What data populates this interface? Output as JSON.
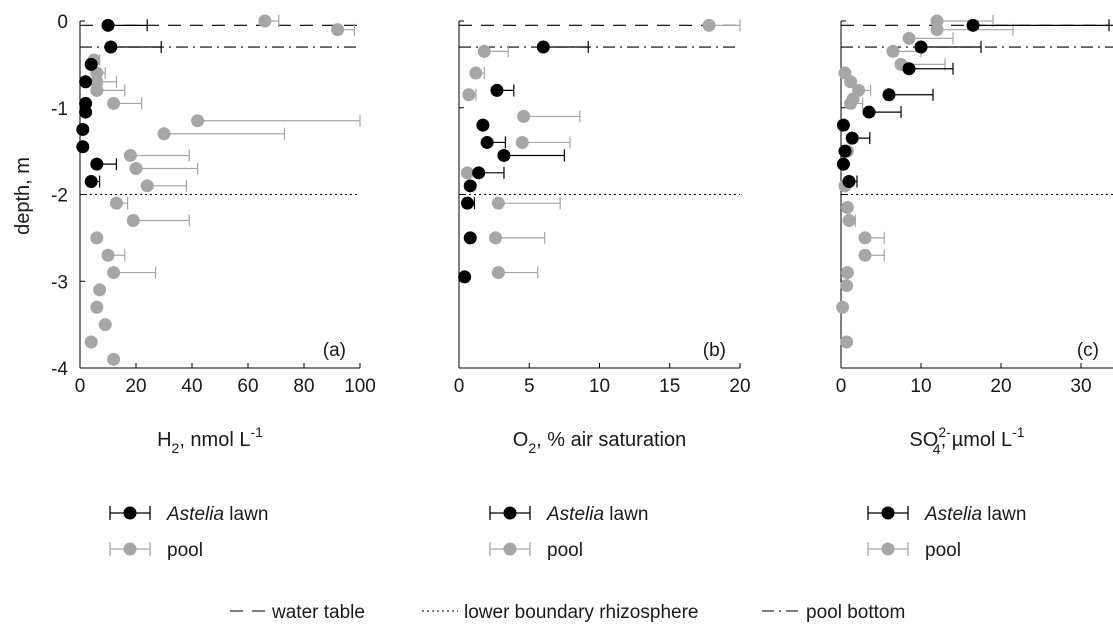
{
  "figure": {
    "shared_ylabel": "depth, m",
    "reference_lines": [
      {
        "key": "water_table",
        "label": "water table",
        "style": "dashed"
      },
      {
        "key": "rhizosphere",
        "label": "lower boundary rhizosphere",
        "style": "dotted"
      },
      {
        "key": "pool_bottom",
        "label": "pool bottom",
        "style": "dashdot"
      }
    ],
    "series_colors": {
      "Astelia lawn": "#000000",
      "pool": "#a6a6a6"
    }
  },
  "chart_data": [
    {
      "type": "scatter",
      "panel_label": "(a)",
      "xlabel_main": "H",
      "xlabel_sub": "2",
      "xlabel_sup": "",
      "xlabel_rest": ", nmol L",
      "xlabel_rest_sup": "-1",
      "xlim": [
        0,
        100
      ],
      "ylim": [
        -4,
        0
      ],
      "xticks": [
        0,
        20,
        40,
        60,
        80,
        100
      ],
      "yticks": [
        0,
        -1,
        -2,
        -3,
        -4
      ],
      "ylabel": "depth, m",
      "reference_depths": {
        "water_table": -0.05,
        "pool_bottom": -0.3,
        "rhizosphere": -2.0
      },
      "legend": [
        {
          "name": "Astelia lawn",
          "italic_part": "Astelia",
          "rest": " lawn"
        },
        {
          "name": "pool",
          "italic_part": "",
          "rest": "pool"
        }
      ],
      "series": [
        {
          "name": "Astelia lawn",
          "points": [
            {
              "x": 10,
              "y": -0.05,
              "err": 14
            },
            {
              "x": 11,
              "y": -0.3,
              "err": 18
            },
            {
              "x": 4,
              "y": -0.5,
              "err": 0
            },
            {
              "x": 2,
              "y": -0.7,
              "err": 0
            },
            {
              "x": 2,
              "y": -0.95,
              "err": 0
            },
            {
              "x": 2,
              "y": -1.05,
              "err": 0
            },
            {
              "x": 1,
              "y": -1.25,
              "err": 0
            },
            {
              "x": 1,
              "y": -1.45,
              "err": 0
            },
            {
              "x": 6,
              "y": -1.65,
              "err": 7
            },
            {
              "x": 4,
              "y": -1.85,
              "err": 3
            }
          ]
        },
        {
          "name": "pool",
          "points": [
            {
              "x": 66,
              "y": 0.0,
              "err": 5
            },
            {
              "x": 92,
              "y": -0.1,
              "err": 6
            },
            {
              "x": 5,
              "y": -0.45,
              "err": 2
            },
            {
              "x": 6,
              "y": -0.6,
              "err": 3
            },
            {
              "x": 6,
              "y": -0.7,
              "err": 7
            },
            {
              "x": 6,
              "y": -0.8,
              "err": 10
            },
            {
              "x": 12,
              "y": -0.95,
              "err": 10
            },
            {
              "x": 42,
              "y": -1.15,
              "err": 58
            },
            {
              "x": 30,
              "y": -1.3,
              "err": 43
            },
            {
              "x": 18,
              "y": -1.55,
              "err": 21
            },
            {
              "x": 20,
              "y": -1.7,
              "err": 22
            },
            {
              "x": 24,
              "y": -1.9,
              "err": 14
            },
            {
              "x": 13,
              "y": -2.1,
              "err": 4
            },
            {
              "x": 19,
              "y": -2.3,
              "err": 20
            },
            {
              "x": 6,
              "y": -2.5,
              "err": 0
            },
            {
              "x": 10,
              "y": -2.7,
              "err": 6
            },
            {
              "x": 12,
              "y": -2.9,
              "err": 15
            },
            {
              "x": 7,
              "y": -3.1,
              "err": 0
            },
            {
              "x": 6,
              "y": -3.3,
              "err": 0
            },
            {
              "x": 9,
              "y": -3.5,
              "err": 0
            },
            {
              "x": 4,
              "y": -3.7,
              "err": 0
            },
            {
              "x": 12,
              "y": -3.9,
              "err": 0
            }
          ]
        }
      ]
    },
    {
      "type": "scatter",
      "panel_label": "(b)",
      "xlabel_main": "O",
      "xlabel_sub": "2",
      "xlabel_sup": "",
      "xlabel_rest": ", % air saturation",
      "xlabel_rest_sup": "",
      "xlim": [
        0,
        20
      ],
      "ylim": [
        -4,
        0
      ],
      "xticks": [
        0,
        5,
        10,
        15,
        20
      ],
      "yticks": [
        0,
        -1,
        -2,
        -3,
        -4
      ],
      "reference_depths": {
        "water_table": -0.05,
        "pool_bottom": -0.3,
        "rhizosphere": -2.0
      },
      "legend": [
        {
          "name": "Astelia lawn",
          "italic_part": "Astelia",
          "rest": " lawn"
        },
        {
          "name": "pool",
          "italic_part": "",
          "rest": "pool"
        }
      ],
      "series": [
        {
          "name": "Astelia lawn",
          "points": [
            {
              "x": 6.0,
              "y": -0.3,
              "err": 3.2
            },
            {
              "x": 2.7,
              "y": -0.8,
              "err": 1.2
            },
            {
              "x": 1.7,
              "y": -1.2,
              "err": 0
            },
            {
              "x": 2.0,
              "y": -1.4,
              "err": 1.3
            },
            {
              "x": 3.2,
              "y": -1.55,
              "err": 4.3
            },
            {
              "x": 1.4,
              "y": -1.75,
              "err": 1.8
            },
            {
              "x": 0.8,
              "y": -1.9,
              "err": 0
            },
            {
              "x": 0.6,
              "y": -2.1,
              "err": 0.5
            },
            {
              "x": 0.8,
              "y": -2.5,
              "err": 0
            },
            {
              "x": 0.4,
              "y": -2.95,
              "err": 0
            }
          ]
        },
        {
          "name": "pool",
          "points": [
            {
              "x": 17.8,
              "y": -0.05,
              "err": 2.2
            },
            {
              "x": 1.8,
              "y": -0.35,
              "err": 1.7
            },
            {
              "x": 1.2,
              "y": -0.6,
              "err": 0.6
            },
            {
              "x": 0.7,
              "y": -0.85,
              "err": 0.5
            },
            {
              "x": 4.6,
              "y": -1.1,
              "err": 4.0
            },
            {
              "x": 4.5,
              "y": -1.4,
              "err": 3.4
            },
            {
              "x": 0.6,
              "y": -1.75,
              "err": 0
            },
            {
              "x": 2.8,
              "y": -2.1,
              "err": 4.4
            },
            {
              "x": 2.6,
              "y": -2.5,
              "err": 3.5
            },
            {
              "x": 2.8,
              "y": -2.9,
              "err": 2.8
            }
          ]
        }
      ]
    },
    {
      "type": "scatter",
      "panel_label": "(c)",
      "xlabel_main": "SO",
      "xlabel_sub": "4",
      "xlabel_sup": "2-",
      "xlabel_rest": ", µmol L",
      "xlabel_rest_sup": "-1",
      "xlim": [
        0,
        34
      ],
      "ylim": [
        -4,
        0
      ],
      "xticks": [
        0,
        10,
        20,
        30
      ],
      "yticks": [
        0,
        -1,
        -2,
        -3,
        -4
      ],
      "reference_depths": {
        "water_table": -0.05,
        "pool_bottom": -0.3,
        "rhizosphere": -2.0
      },
      "legend": [
        {
          "name": "Astelia lawn",
          "italic_part": "Astelia",
          "rest": " lawn"
        },
        {
          "name": "pool",
          "italic_part": "",
          "rest": "pool"
        }
      ],
      "series": [
        {
          "name": "Astelia lawn",
          "points": [
            {
              "x": 16.5,
              "y": -0.05,
              "err": 17
            },
            {
              "x": 10.0,
              "y": -0.3,
              "err": 7.5
            },
            {
              "x": 8.5,
              "y": -0.55,
              "err": 5.5
            },
            {
              "x": 6.0,
              "y": -0.85,
              "err": 5.5
            },
            {
              "x": 3.5,
              "y": -1.05,
              "err": 4.0
            },
            {
              "x": 0.3,
              "y": -1.2,
              "err": 0
            },
            {
              "x": 1.4,
              "y": -1.35,
              "err": 2.2
            },
            {
              "x": 0.5,
              "y": -1.5,
              "err": 0
            },
            {
              "x": 0.3,
              "y": -1.65,
              "err": 0
            },
            {
              "x": 1.0,
              "y": -1.85,
              "err": 1.0
            }
          ]
        },
        {
          "name": "pool",
          "points": [
            {
              "x": 12.0,
              "y": 0.0,
              "err": 7.0
            },
            {
              "x": 12.0,
              "y": -0.1,
              "err": 9.5
            },
            {
              "x": 8.5,
              "y": -0.2,
              "err": 5.5
            },
            {
              "x": 6.5,
              "y": -0.35,
              "err": 3.5
            },
            {
              "x": 7.5,
              "y": -0.5,
              "err": 5.5
            },
            {
              "x": 0.5,
              "y": -0.6,
              "err": 0
            },
            {
              "x": 1.2,
              "y": -0.7,
              "err": 0
            },
            {
              "x": 2.2,
              "y": -0.8,
              "err": 1.5
            },
            {
              "x": 1.5,
              "y": -0.9,
              "err": 0
            },
            {
              "x": 1.2,
              "y": -0.95,
              "err": 1.5
            },
            {
              "x": 0.8,
              "y": -1.5,
              "err": 0
            },
            {
              "x": 0.5,
              "y": -1.9,
              "err": 0
            },
            {
              "x": 0.8,
              "y": -2.15,
              "err": 0
            },
            {
              "x": 1.0,
              "y": -2.3,
              "err": 0.8
            },
            {
              "x": 3.0,
              "y": -2.5,
              "err": 2.4
            },
            {
              "x": 3.0,
              "y": -2.7,
              "err": 2.4
            },
            {
              "x": 0.8,
              "y": -2.9,
              "err": 0
            },
            {
              "x": 0.7,
              "y": -3.05,
              "err": 0
            },
            {
              "x": 0.2,
              "y": -3.3,
              "err": 0
            },
            {
              "x": 0.7,
              "y": -3.7,
              "err": 0
            }
          ]
        }
      ]
    }
  ]
}
